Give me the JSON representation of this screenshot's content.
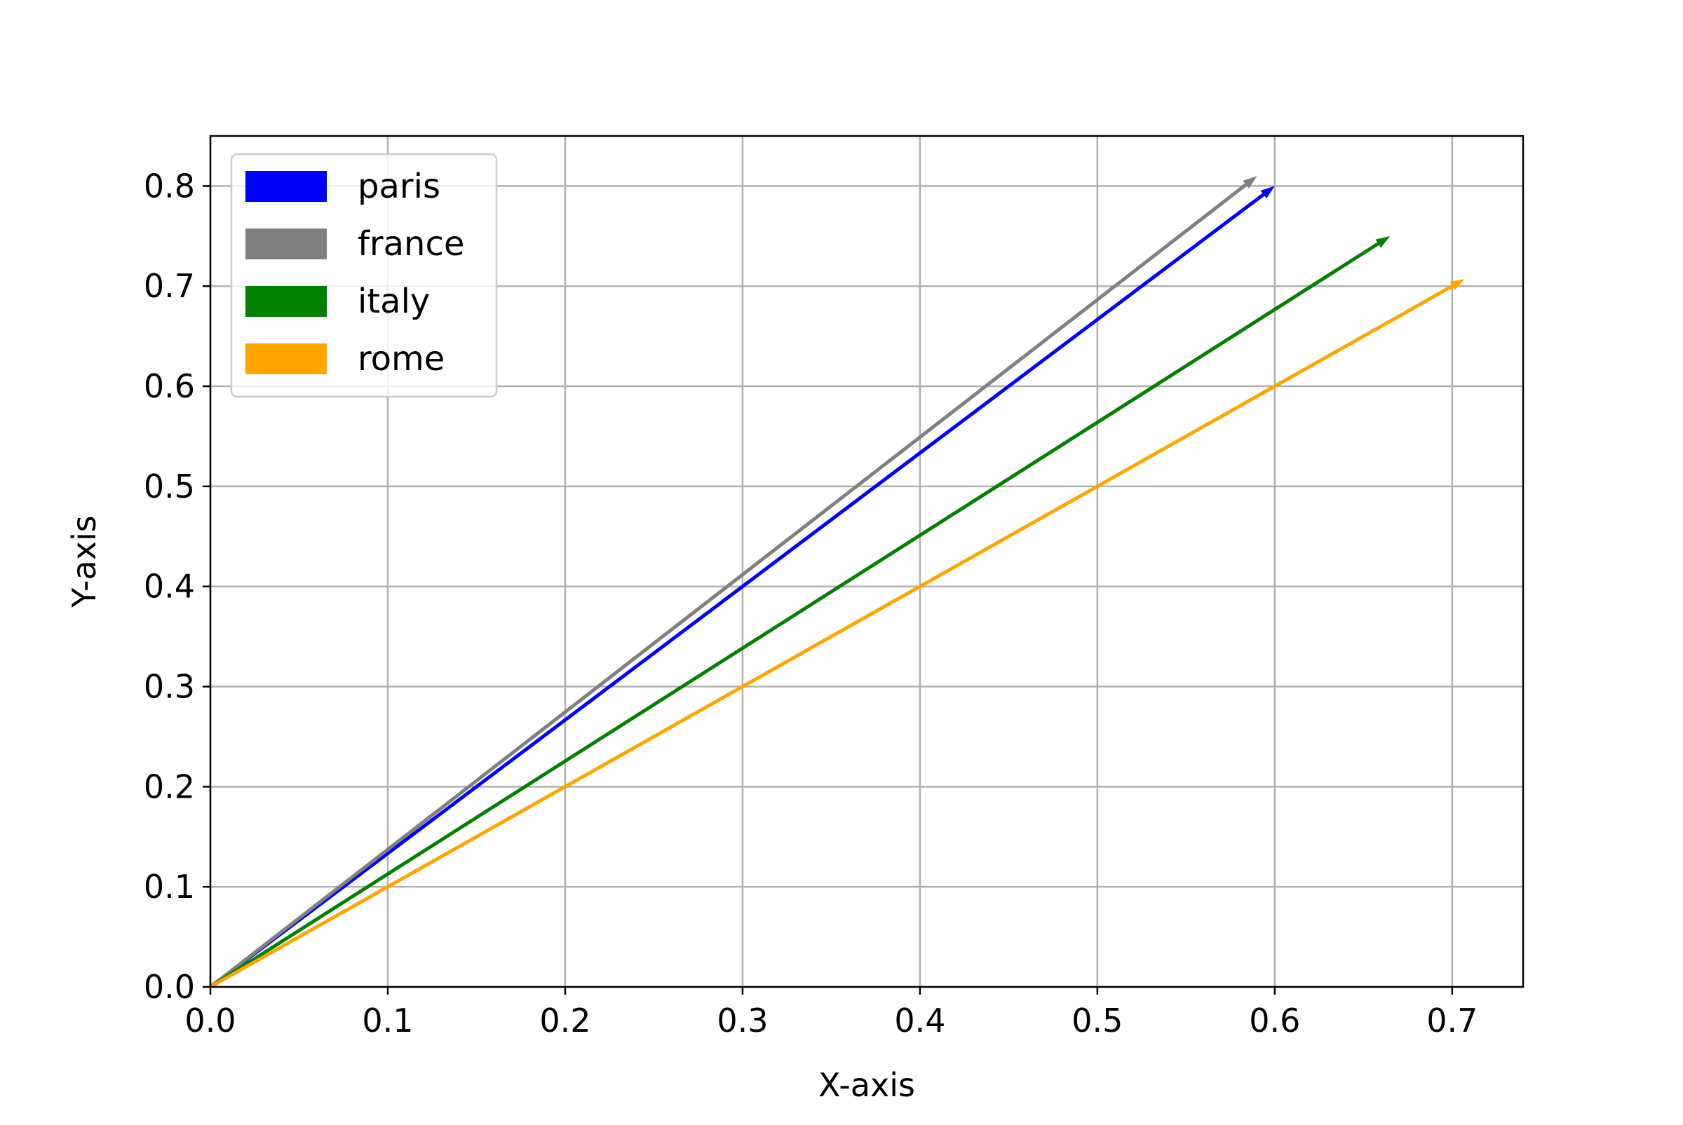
{
  "chart_data": {
    "type": "quiver",
    "title": "",
    "xlabel": "X-axis",
    "ylabel": "Y-axis",
    "xlim": [
      0.0,
      0.74
    ],
    "ylim": [
      0.0,
      0.85
    ],
    "xticks": [
      "0.0",
      "0.1",
      "0.2",
      "0.3",
      "0.4",
      "0.5",
      "0.6",
      "0.7"
    ],
    "yticks": [
      "0.0",
      "0.1",
      "0.2",
      "0.3",
      "0.4",
      "0.5",
      "0.6",
      "0.7",
      "0.8"
    ],
    "grid": true,
    "legend_position": "upper-left",
    "series": [
      {
        "name": "paris",
        "color": "#0000ff",
        "start": [
          0,
          0
        ],
        "end": [
          0.6,
          0.8
        ]
      },
      {
        "name": "france",
        "color": "#808080",
        "start": [
          0,
          0
        ],
        "end": [
          0.59,
          0.81
        ]
      },
      {
        "name": "italy",
        "color": "#008000",
        "start": [
          0,
          0
        ],
        "end": [
          0.665,
          0.75
        ]
      },
      {
        "name": "rome",
        "color": "#ffa500",
        "start": [
          0,
          0
        ],
        "end": [
          0.707,
          0.707
        ]
      }
    ]
  }
}
